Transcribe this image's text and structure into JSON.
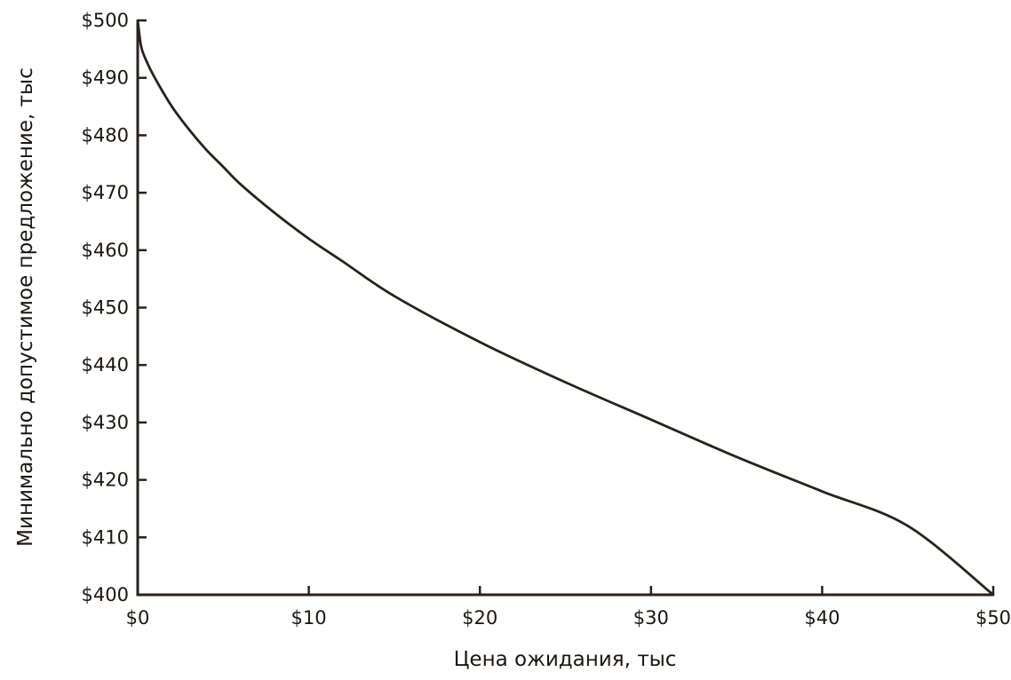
{
  "chart_data": {
    "type": "line",
    "title": "",
    "xlabel": "Цена ожидания, тыс",
    "ylabel": "Минимально допустимое предложение, тыс",
    "xlim": [
      0,
      50
    ],
    "ylim": [
      400,
      500
    ],
    "x_ticks": [
      0,
      10,
      20,
      30,
      40,
      50
    ],
    "x_tick_labels": [
      "$0",
      "$10",
      "$20",
      "$30",
      "$40",
      "$50"
    ],
    "y_ticks": [
      400,
      410,
      420,
      430,
      440,
      450,
      460,
      470,
      480,
      490,
      500
    ],
    "y_tick_labels": [
      "$400",
      "$410",
      "$420",
      "$430",
      "$440",
      "$450",
      "$460",
      "$470",
      "$480",
      "$490",
      "$500"
    ],
    "grid": false,
    "line_color": "#2a211b",
    "series": [
      {
        "x": [
          0,
          0.2,
          0.5,
          1,
          2,
          3,
          4,
          5,
          6,
          8,
          10,
          12,
          15,
          20,
          25,
          30,
          35,
          40,
          45,
          50
        ],
        "values": [
          500,
          495.5,
          493,
          490,
          485,
          481,
          477.5,
          474.5,
          471.5,
          466.5,
          462,
          458,
          452,
          444,
          437,
          430.5,
          424,
          418,
          412,
          400
        ]
      }
    ]
  }
}
